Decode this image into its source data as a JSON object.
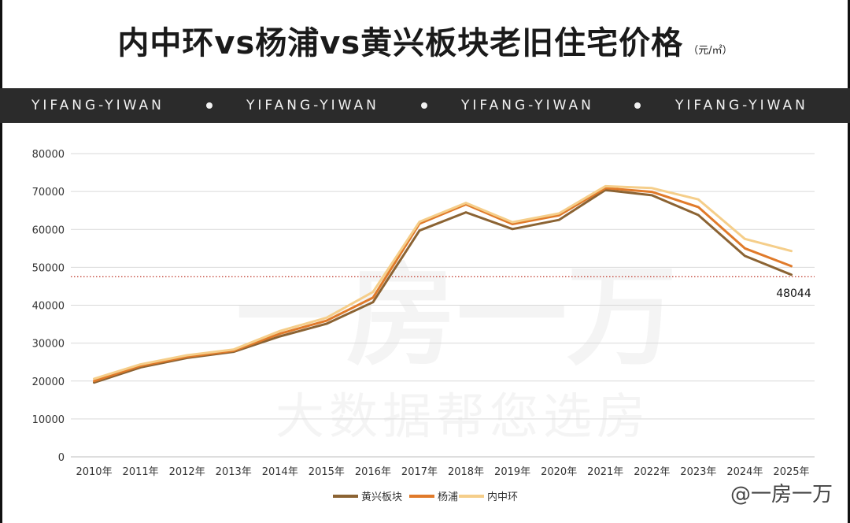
{
  "header": {
    "title": "内中环vs杨浦vs黄兴板块老旧住宅价格",
    "unit": "（元/㎡）"
  },
  "banner": {
    "items": [
      "YIFANG-YIWAN",
      "YIFANG-YIWAN",
      "YIFANG-YIWAN",
      "YIFANG-YIWAN"
    ]
  },
  "watermark": {
    "brand": "一房一万",
    "slogan": "大数据帮您选房"
  },
  "corner_mark": "@一房一万",
  "chart_data": {
    "type": "line",
    "categories": [
      "2010年",
      "2011年",
      "2012年",
      "2013年",
      "2014年",
      "2015年",
      "2016年",
      "2017年",
      "2018年",
      "2019年",
      "2020年",
      "2021年",
      "2022年",
      "2023年",
      "2024年",
      "2025年"
    ],
    "series": [
      {
        "name": "黄兴板块",
        "color": "#8B6333",
        "values": [
          19600,
          23600,
          26100,
          27700,
          31800,
          35100,
          40800,
          59700,
          64500,
          60100,
          62500,
          70400,
          69000,
          63800,
          53000,
          48044
        ]
      },
      {
        "name": "杨浦",
        "color": "#E07A2A",
        "values": [
          20000,
          24000,
          26400,
          28000,
          32500,
          35900,
          42000,
          61500,
          66600,
          61400,
          63700,
          70900,
          69900,
          65900,
          55000,
          50300
        ]
      },
      {
        "name": "内中环",
        "color": "#F5CE8A",
        "values": [
          20600,
          24400,
          26800,
          28300,
          33200,
          36700,
          43500,
          62000,
          67000,
          61900,
          64200,
          71400,
          70900,
          67900,
          57500,
          54300
        ]
      }
    ],
    "ylim": [
      0,
      80000
    ],
    "yticks": [
      "0",
      "10000",
      "20000",
      "30000",
      "40000",
      "50000",
      "60000",
      "70000",
      "80000"
    ],
    "reference_line": {
      "value": 47500,
      "color": "#C0392B",
      "style": "dotted"
    },
    "annotation": {
      "text": "48044",
      "series": "黄兴板块",
      "category": "2025年"
    },
    "legend": "bottom-center",
    "grid": true
  }
}
